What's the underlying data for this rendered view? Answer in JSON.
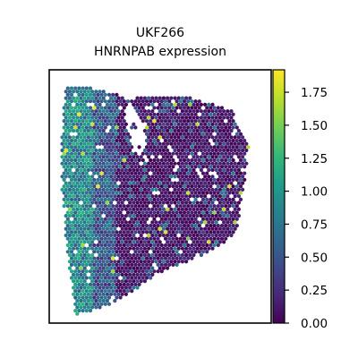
{
  "chart_data": {
    "type": "scatter",
    "title_lines": [
      "UKF266",
      "HNRNPAB expression"
    ],
    "xlabel": "",
    "ylabel": "",
    "colorbar": {
      "colormap": "viridis",
      "vmin": 0.0,
      "vmax": 1.92,
      "ticks": [
        0.0,
        0.25,
        0.5,
        0.75,
        1.0,
        1.25,
        1.5,
        1.75
      ],
      "tick_labels": [
        "0.00",
        "0.25",
        "0.50",
        "0.75",
        "1.00",
        "1.25",
        "1.50",
        "1.75"
      ]
    },
    "grid": false,
    "axes_ticks_visible": false,
    "spots": {
      "description_note": "",
      "tissue_outline": [
        [
          0.07,
          0.06
        ],
        [
          0.26,
          0.08
        ],
        [
          0.36,
          0.12
        ],
        [
          0.42,
          0.1
        ],
        [
          0.6,
          0.1
        ],
        [
          0.82,
          0.16
        ],
        [
          0.9,
          0.3
        ],
        [
          0.88,
          0.45
        ],
        [
          0.84,
          0.65
        ],
        [
          0.72,
          0.72
        ],
        [
          0.5,
          0.8
        ],
        [
          0.3,
          0.92
        ],
        [
          0.12,
          0.97
        ],
        [
          0.08,
          0.7
        ],
        [
          0.05,
          0.4
        ],
        [
          0.07,
          0.06
        ]
      ],
      "gap_region": [
        [
          0.36,
          0.12
        ],
        [
          0.44,
          0.26
        ],
        [
          0.44,
          0.36
        ],
        [
          0.38,
          0.32
        ],
        [
          0.34,
          0.18
        ]
      ],
      "high_expression_region": "left band",
      "typical_left_values": [
        0.6,
        0.9,
        1.1
      ],
      "typical_right_values": [
        0.0,
        0.15,
        0.3
      ]
    }
  },
  "colors": {
    "viridis_stops": [
      "#440154",
      "#482878",
      "#3e4989",
      "#31688e",
      "#26828e",
      "#1f9e89",
      "#35b779",
      "#6ece58",
      "#b5de2b",
      "#fde725"
    ],
    "axes_frame": "#000000",
    "background": "#ffffff"
  }
}
